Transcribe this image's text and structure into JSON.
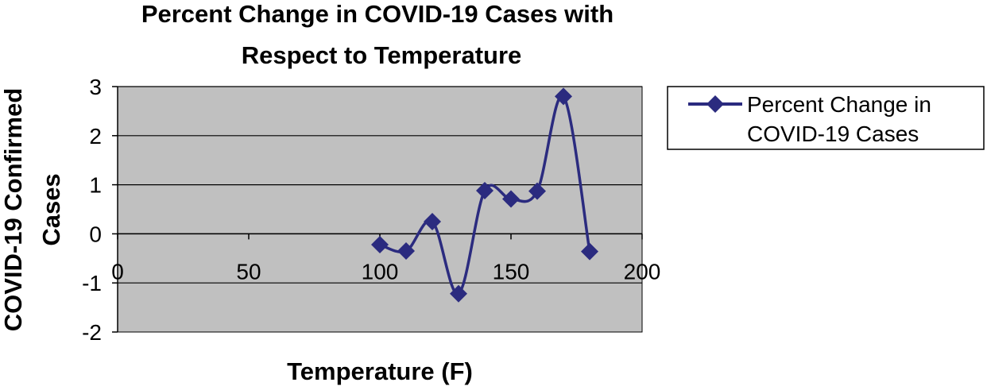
{
  "chart_data": {
    "type": "scatter",
    "title_lines": [
      "Percent Change in COVID-19 Cases with",
      "Respect to Temperature"
    ],
    "xlabel": "Temperature (F)",
    "ylabel_lines": [
      "COVID-19 Confirmed",
      "Cases"
    ],
    "xlim": [
      0,
      200
    ],
    "ylim": [
      -2,
      3
    ],
    "x_ticks": [
      0,
      50,
      100,
      150,
      200
    ],
    "y_ticks": [
      -2,
      -1,
      0,
      1,
      2,
      3
    ],
    "grid": true,
    "legend_position": "right",
    "series": [
      {
        "name": "Percent Change in COVID-19 Cases",
        "legend_lines": [
          "Percent Change in",
          "COVID-19 Cases"
        ],
        "color": "#2b2b7f",
        "smooth": true,
        "marker": "diamond",
        "x": [
          100,
          110,
          120,
          130,
          140,
          150,
          160,
          170,
          180
        ],
        "y": [
          -0.22,
          -0.35,
          0.25,
          -1.22,
          0.88,
          0.71,
          0.87,
          2.8,
          -0.36
        ]
      }
    ],
    "plot_background": "#c0c0c0",
    "grid_color": "#000000"
  }
}
